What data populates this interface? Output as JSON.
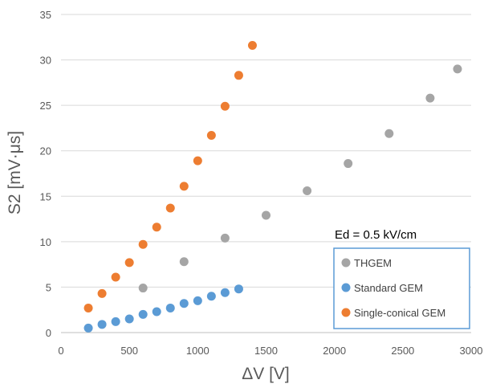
{
  "chart_data": {
    "type": "scatter",
    "title": "",
    "xlabel": "ΔV [V]",
    "ylabel": "S2 [mV·μs]",
    "xlim": [
      0,
      3000
    ],
    "ylim": [
      0,
      35
    ],
    "xticks": [
      0,
      500,
      1000,
      1500,
      2000,
      2500,
      3000
    ],
    "yticks": [
      0,
      5,
      10,
      15,
      20,
      25,
      30,
      35
    ],
    "grid": "horizontal",
    "legend_position": "bottom-right",
    "annotation": "Ed = 0.5 kV/cm",
    "series": [
      {
        "name": "THGEM",
        "color": "#a5a5a5",
        "x": [
          600,
          900,
          1200,
          1500,
          1800,
          2100,
          2400,
          2700,
          2900
        ],
        "y": [
          4.9,
          7.8,
          10.4,
          12.9,
          15.6,
          18.6,
          21.9,
          25.8,
          29.0
        ]
      },
      {
        "name": "Standard GEM",
        "color": "#5b9bd5",
        "x": [
          200,
          300,
          400,
          500,
          600,
          700,
          800,
          900,
          1000,
          1100,
          1200,
          1300
        ],
        "y": [
          0.5,
          0.9,
          1.2,
          1.5,
          2.0,
          2.3,
          2.7,
          3.2,
          3.5,
          4.0,
          4.4,
          4.8
        ]
      },
      {
        "name": "Single-conical GEM",
        "color": "#ed7d31",
        "x": [
          200,
          300,
          400,
          500,
          600,
          700,
          800,
          900,
          1000,
          1100,
          1200,
          1300,
          1400
        ],
        "y": [
          2.7,
          4.3,
          6.1,
          7.7,
          9.7,
          11.6,
          13.7,
          16.1,
          18.9,
          21.7,
          24.9,
          28.3,
          31.6
        ]
      }
    ]
  }
}
